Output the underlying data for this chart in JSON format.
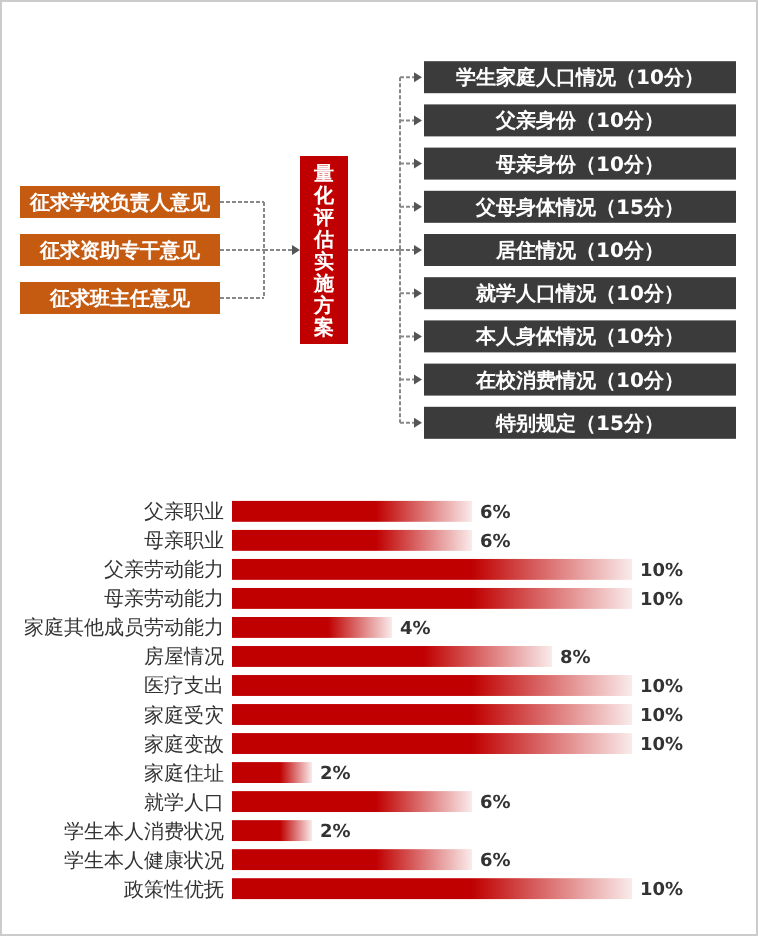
{
  "chart_data": [
    {
      "type": "other",
      "title": "量化评估实施方案",
      "annotations": [
        "征求学校负责人意见",
        "征求资助专干意见",
        "征求班主任意见"
      ],
      "categories": [
        "学生家庭人口情况（10分）",
        "父亲身份（10分）",
        "母亲身份（10分）",
        "父母身体情况（15分）",
        "居住情况（10分）",
        "就学人口情况（10分）",
        "本人身体情况（10分）",
        "在校消费情况（10分）",
        "特别规定（15分）"
      ]
    },
    {
      "type": "bar",
      "orientation": "horizontal",
      "color": "#c00000",
      "categories": [
        "父亲职业",
        "母亲职业",
        "父亲劳动能力",
        "母亲劳动能力",
        "家庭其他成员劳动能力",
        "房屋情况",
        "医疗支出",
        "家庭受灾",
        "家庭变故",
        "家庭住址",
        "就学人口",
        "学生本人消费状况",
        "学生本人健康状况",
        "政策性优抚"
      ],
      "values": [
        6,
        6,
        10,
        10,
        4,
        8,
        10,
        10,
        10,
        2,
        6,
        2,
        6,
        10
      ],
      "value_labels": [
        "6%",
        "6%",
        "10%",
        "10%",
        "4%",
        "8%",
        "10%",
        "10%",
        "10%",
        "2%",
        "6%",
        "2%",
        "6%",
        "10%"
      ]
    }
  ]
}
